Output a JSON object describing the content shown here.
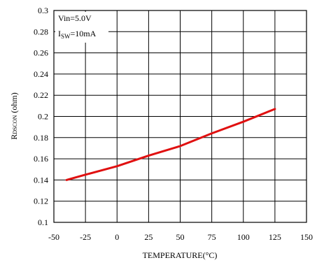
{
  "chart_data": {
    "type": "line",
    "xlabel": "TEMPERATURE(°C)",
    "ylabel": "R",
    "ylabel_sub": "DSCON",
    "ylabel_unit": " (ohm)",
    "xlim": [
      -50,
      150
    ],
    "ylim": [
      0.1,
      0.3
    ],
    "x_ticks": [
      -50,
      -25,
      0,
      25,
      50,
      75,
      100,
      125,
      150
    ],
    "x_tick_labels": [
      "-50",
      "-25",
      "0",
      "25",
      "50",
      "75",
      "100",
      "125",
      "150"
    ],
    "y_ticks": [
      0.1,
      0.12,
      0.14,
      0.16,
      0.18,
      0.2,
      0.22,
      0.24,
      0.26,
      0.28,
      0.3
    ],
    "y_tick_labels": [
      "0.1",
      "0.12",
      "0.14",
      "0.16",
      "0.18",
      "0.2",
      "0.22",
      "0.24",
      "0.26",
      "0.28",
      "0.3"
    ],
    "grid": true,
    "series": [
      {
        "color": "#e01010",
        "x": [
          -40,
          -25,
          0,
          25,
          50,
          75,
          100,
          125
        ],
        "y": [
          0.14,
          0.145,
          0.153,
          0.163,
          0.172,
          0.184,
          0.195,
          0.207
        ]
      }
    ],
    "annotations": {
      "line1": "Vin=5.0V",
      "line2_main": "I",
      "line2_sub": "SW",
      "line2_rest": "=10mA"
    }
  }
}
